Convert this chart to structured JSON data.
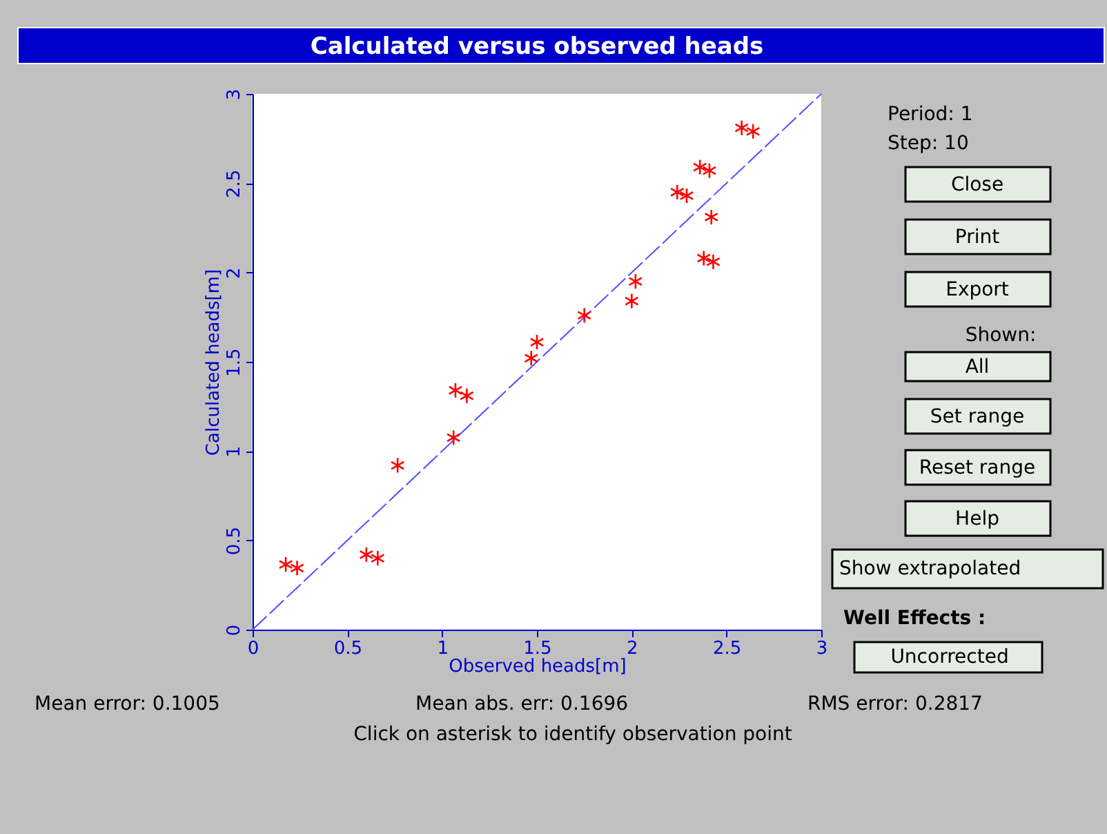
{
  "chart_data": {
    "type": "scatter",
    "title": "Calculated versus observed heads",
    "xlabel": "Observed heads[m]",
    "ylabel": "Calculated heads[m]",
    "xlim": [
      0,
      3
    ],
    "ylim": [
      0,
      3
    ],
    "xticks": [
      0,
      0.5,
      1,
      1.5,
      2,
      2.5,
      3
    ],
    "yticks": [
      0,
      0.5,
      1,
      1.5,
      2,
      2.5,
      3
    ],
    "grid": false,
    "series": [
      {
        "type": "line",
        "color": "#4d4dff",
        "line_style": "dashed",
        "x": [
          0,
          3
        ],
        "values": [
          0,
          3
        ]
      },
      {
        "type": "scatter",
        "color": "#ff0000",
        "marker": "cross",
        "x": [
          0.175,
          0.235,
          0.6,
          0.66,
          0.765,
          1.06,
          1.07,
          1.13,
          1.47,
          1.5,
          1.75,
          2.0,
          2.02,
          2.24,
          2.29,
          2.36,
          2.41,
          2.42,
          2.38,
          2.43,
          2.58,
          2.64
        ],
        "values": [
          0.365,
          0.345,
          0.42,
          0.4,
          0.92,
          1.075,
          1.34,
          1.31,
          1.52,
          1.61,
          1.76,
          1.84,
          1.95,
          2.45,
          2.43,
          2.59,
          2.57,
          2.31,
          2.08,
          2.06,
          2.81,
          2.79
        ]
      }
    ],
    "annotations": [
      "Period: 1",
      "Step: 10",
      "Close",
      "Print",
      "Export",
      "Shown:",
      "All",
      "Set range",
      "Reset range",
      "Help",
      "Show extrapolated",
      "Well Effects :",
      "Uncorrected",
      "Mean error:   0.1005",
      "Mean abs. err:   0.1696",
      "RMS error:   0.2817",
      "Click on asterisk to identify observation point"
    ]
  }
}
